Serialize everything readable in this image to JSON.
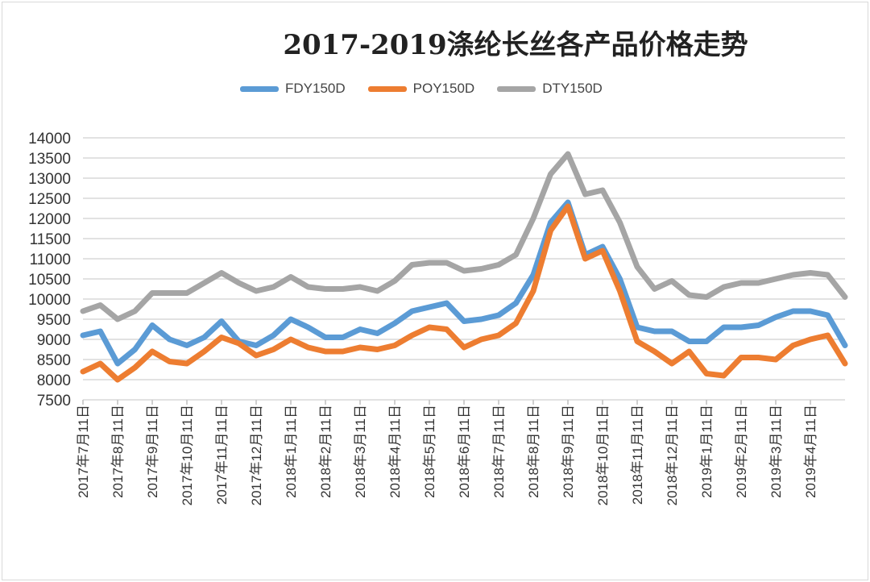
{
  "chart_data": {
    "type": "line",
    "title": "2017-2019涤纶长丝各产品价格走势",
    "xlabel": "",
    "ylabel": "",
    "ylim": [
      7500,
      14000
    ],
    "yticks": [
      7500,
      8000,
      8500,
      9000,
      9500,
      10000,
      10500,
      11000,
      11500,
      12000,
      12500,
      13000,
      13500,
      14000
    ],
    "grid": "horizontal",
    "legend_position": "top",
    "xtick_labels": [
      "2017年7月11日",
      "2017年8月11日",
      "2017年9月11日",
      "2017年10月11日",
      "2017年11月11日",
      "2017年12月11日",
      "2018年1月11日",
      "2018年2月11日",
      "2018年3月11日",
      "2018年4月11日",
      "2018年5月11日",
      "2018年6月11日",
      "2018年7月11日",
      "2018年8月11日",
      "2018年9月11日",
      "2018年10月11日",
      "2018年11月11日",
      "2018年12月11日",
      "2019年1月11日",
      "2019年2月11日",
      "2019年3月11日",
      "2019年4月11日"
    ],
    "x": [
      "2017-07-11",
      "2017-07-25",
      "2017-08-11",
      "2017-08-25",
      "2017-09-11",
      "2017-09-25",
      "2017-10-11",
      "2017-10-25",
      "2017-11-11",
      "2017-11-25",
      "2017-12-11",
      "2017-12-25",
      "2018-01-11",
      "2018-01-25",
      "2018-02-11",
      "2018-02-25",
      "2018-03-11",
      "2018-03-25",
      "2018-04-11",
      "2018-04-25",
      "2018-05-11",
      "2018-05-25",
      "2018-06-11",
      "2018-06-25",
      "2018-07-11",
      "2018-07-25",
      "2018-08-11",
      "2018-08-25",
      "2018-09-11",
      "2018-09-25",
      "2018-10-11",
      "2018-10-25",
      "2018-11-11",
      "2018-11-25",
      "2018-12-11",
      "2018-12-25",
      "2019-01-11",
      "2019-01-25",
      "2019-02-11",
      "2019-02-25",
      "2019-03-11",
      "2019-03-25",
      "2019-04-11",
      "2019-04-25",
      "2019-05-05"
    ],
    "series": [
      {
        "name": "FDY150D",
        "color": "#5b9bd5",
        "values": [
          9100,
          9200,
          8400,
          8750,
          9350,
          9000,
          8850,
          9050,
          9450,
          8950,
          8850,
          9100,
          9500,
          9300,
          9050,
          9050,
          9250,
          9150,
          9400,
          9700,
          9800,
          9900,
          9450,
          9500,
          9600,
          9900,
          10600,
          11900,
          12400,
          11100,
          11300,
          10500,
          9300,
          9200,
          9200,
          8950,
          8950,
          9300,
          9300,
          9350,
          9550,
          9700,
          9700,
          9600,
          8850
        ]
      },
      {
        "name": "POY150D",
        "color": "#ed7d31",
        "values": [
          8200,
          8400,
          8000,
          8300,
          8700,
          8450,
          8400,
          8700,
          9050,
          8900,
          8600,
          8750,
          9000,
          8800,
          8700,
          8700,
          8800,
          8750,
          8850,
          9100,
          9300,
          9250,
          8800,
          9000,
          9100,
          9400,
          10200,
          11700,
          12300,
          11000,
          11200,
          10200,
          8950,
          8700,
          8400,
          8700,
          8150,
          8100,
          8550,
          8550,
          8500,
          8850,
          9000,
          9100,
          8400
        ]
      },
      {
        "name": "DTY150D",
        "color": "#a5a5a5",
        "values": [
          9700,
          9850,
          9500,
          9700,
          10150,
          10150,
          10150,
          10400,
          10650,
          10400,
          10200,
          10300,
          10550,
          10300,
          10250,
          10250,
          10300,
          10200,
          10450,
          10850,
          10900,
          10900,
          10700,
          10750,
          10850,
          11100,
          12000,
          13100,
          13600,
          12600,
          12700,
          11900,
          10800,
          10250,
          10450,
          10100,
          10050,
          10300,
          10400,
          10400,
          10500,
          10600,
          10650,
          10600,
          10050
        ]
      }
    ]
  }
}
